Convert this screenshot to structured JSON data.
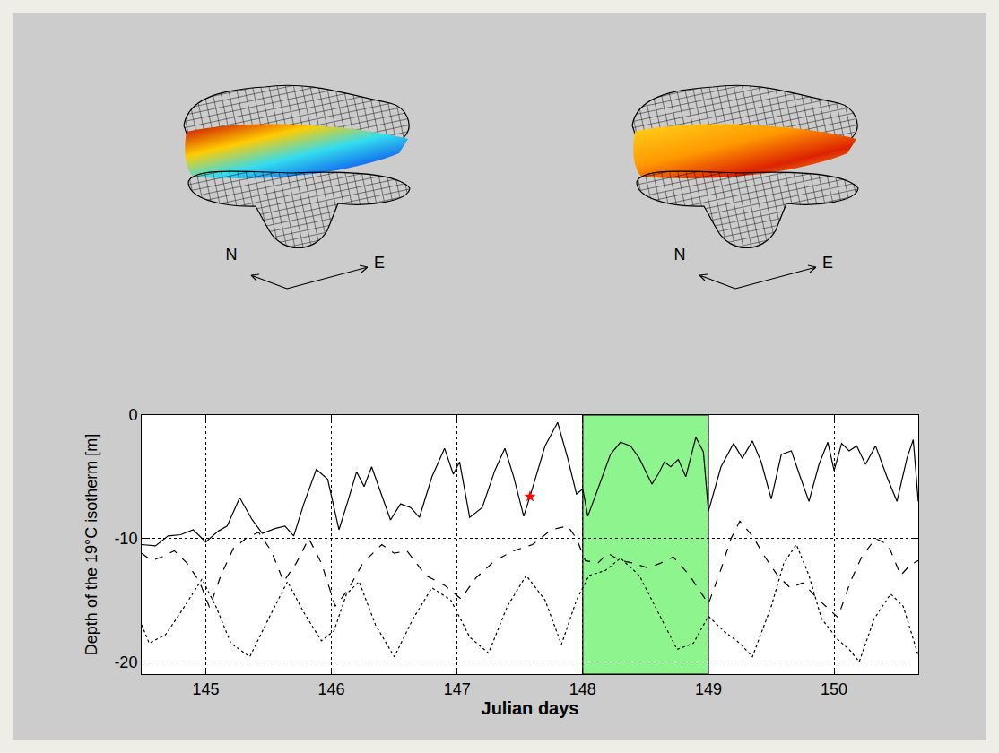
{
  "chart_data": {
    "type": "line",
    "x_label": "Julian days",
    "y_label": "Depth of the 19°C isotherm [m]",
    "xlim": [
      144.49,
      150.67
    ],
    "xticks": [
      145,
      146,
      147,
      148,
      149,
      150
    ],
    "ylim": [
      -21,
      0
    ],
    "yticks": [
      0,
      -10,
      -20
    ],
    "grid": true,
    "shaded": {
      "x": [
        148,
        149
      ],
      "color": "#8ef58e"
    },
    "series": [
      {
        "color": "#000000",
        "line_style": "solid",
        "x": [
          144.49,
          144.6,
          144.7,
          144.8,
          144.9,
          145.0,
          145.1,
          145.17,
          145.27,
          145.37,
          145.45,
          145.55,
          145.63,
          145.7,
          145.78,
          145.88,
          145.97,
          146.02,
          146.06,
          146.13,
          146.2,
          146.26,
          146.32,
          146.4,
          146.47,
          146.55,
          146.63,
          146.7,
          146.8,
          146.9,
          146.97,
          147.02,
          147.1,
          147.2,
          147.3,
          147.38,
          147.45,
          147.53,
          147.58,
          147.7,
          147.8,
          147.88,
          147.95,
          148.0,
          148.04,
          148.12,
          148.22,
          148.3,
          148.38,
          148.45,
          148.55,
          148.6,
          148.65,
          148.7,
          148.76,
          148.82,
          148.9,
          148.96,
          149.0,
          149.1,
          149.2,
          149.27,
          149.35,
          149.42,
          149.5,
          149.58,
          149.66,
          149.73,
          149.8,
          149.88,
          149.95,
          150.0,
          150.06,
          150.12,
          150.18,
          150.25,
          150.33,
          150.42,
          150.5,
          150.58,
          150.63,
          150.67
        ],
        "values": [
          -10.5,
          -10.6,
          -9.8,
          -9.7,
          -9.3,
          -10.3,
          -9.4,
          -9.0,
          -6.7,
          -8.5,
          -9.6,
          -9.2,
          -9.0,
          -9.8,
          -7.2,
          -4.4,
          -5.2,
          -7.5,
          -9.3,
          -7.0,
          -4.6,
          -5.8,
          -4.2,
          -6.5,
          -8.5,
          -7.2,
          -7.5,
          -8.3,
          -5.0,
          -2.7,
          -4.8,
          -3.8,
          -8.3,
          -7.5,
          -4.5,
          -2.7,
          -5.0,
          -8.2,
          -6.6,
          -2.5,
          -0.6,
          -3.5,
          -6.4,
          -6.0,
          -8.2,
          -6.0,
          -3.2,
          -2.2,
          -2.5,
          -3.5,
          -5.6,
          -4.8,
          -3.8,
          -4.2,
          -3.6,
          -5.0,
          -1.8,
          -3.0,
          -7.8,
          -4.2,
          -2.3,
          -3.5,
          -2.1,
          -3.8,
          -6.8,
          -3.2,
          -2.9,
          -5.0,
          -7.0,
          -4.0,
          -2.2,
          -4.5,
          -2.3,
          -2.9,
          -2.5,
          -4.0,
          -2.5,
          -5.0,
          -7.0,
          -3.5,
          -2.0,
          -7.0
        ]
      },
      {
        "color": "#000000",
        "line_style": "dashed",
        "x": [
          144.49,
          144.57,
          144.65,
          144.75,
          144.85,
          144.95,
          145.03,
          145.12,
          145.22,
          145.32,
          145.42,
          145.52,
          145.62,
          145.72,
          145.82,
          145.92,
          146.03,
          146.13,
          146.25,
          146.4,
          146.5,
          146.6,
          146.75,
          146.9,
          147.03,
          147.15,
          147.3,
          147.45,
          147.6,
          147.75,
          147.88,
          147.95,
          148.02,
          148.12,
          148.2,
          148.3,
          148.4,
          148.52,
          148.62,
          148.72,
          148.85,
          148.95,
          149.0,
          149.1,
          149.18,
          149.25,
          149.35,
          149.45,
          149.55,
          149.65,
          149.75,
          149.88,
          150.03,
          150.13,
          150.22,
          150.33,
          150.43,
          150.53,
          150.6,
          150.67
        ],
        "values": [
          -11.2,
          -11.8,
          -11.5,
          -11.0,
          -12.0,
          -13.5,
          -15.6,
          -13.0,
          -10.8,
          -10.0,
          -9.5,
          -11.0,
          -13.5,
          -12.0,
          -10.0,
          -12.0,
          -15.5,
          -14.2,
          -12.0,
          -10.5,
          -11.2,
          -11.0,
          -13.0,
          -13.8,
          -14.9,
          -13.2,
          -11.8,
          -11.0,
          -10.5,
          -9.3,
          -9.0,
          -10.0,
          -11.8,
          -12.0,
          -11.2,
          -11.8,
          -12.0,
          -12.4,
          -12.0,
          -11.5,
          -13.0,
          -14.5,
          -15.3,
          -12.5,
          -10.0,
          -8.6,
          -9.8,
          -11.5,
          -13.0,
          -14.0,
          -13.6,
          -15.0,
          -16.4,
          -13.5,
          -11.5,
          -10.0,
          -10.5,
          -13.0,
          -12.2,
          -11.8
        ]
      },
      {
        "color": "#000000",
        "line_style": "dotted",
        "x": [
          144.49,
          144.55,
          144.68,
          144.8,
          144.97,
          145.08,
          145.2,
          145.35,
          145.5,
          145.65,
          145.78,
          145.92,
          146.02,
          146.12,
          146.22,
          146.35,
          146.5,
          146.65,
          146.8,
          146.95,
          147.1,
          147.25,
          147.4,
          147.55,
          147.7,
          147.83,
          147.95,
          148.05,
          148.18,
          148.3,
          148.45,
          148.6,
          148.75,
          148.88,
          149.0,
          149.12,
          149.25,
          149.35,
          149.5,
          149.6,
          149.7,
          149.8,
          149.9,
          150.03,
          150.12,
          150.2,
          150.32,
          150.45,
          150.55,
          150.67
        ],
        "values": [
          -17.0,
          -18.5,
          -17.8,
          -16.0,
          -13.3,
          -15.5,
          -18.5,
          -19.6,
          -16.5,
          -13.5,
          -16.0,
          -18.3,
          -17.5,
          -14.5,
          -13.5,
          -17.0,
          -19.6,
          -16.5,
          -14.0,
          -15.0,
          -18.0,
          -19.3,
          -15.5,
          -13.0,
          -15.0,
          -18.6,
          -15.0,
          -13.0,
          -12.6,
          -11.6,
          -13.0,
          -16.0,
          -19.0,
          -18.5,
          -16.3,
          -17.5,
          -18.5,
          -19.6,
          -15.5,
          -12.0,
          -10.5,
          -13.0,
          -16.5,
          -18.2,
          -19.0,
          -20.0,
          -16.5,
          -14.5,
          -15.5,
          -19.5
        ]
      },
      {
        "type": "scatter",
        "marker": "star",
        "color": "#ff0000",
        "x": [
          147.58
        ],
        "values": [
          -6.6
        ]
      }
    ]
  },
  "illustrations": [
    {
      "north": "N",
      "east": "E"
    },
    {
      "north": "N",
      "east": "E"
    }
  ]
}
